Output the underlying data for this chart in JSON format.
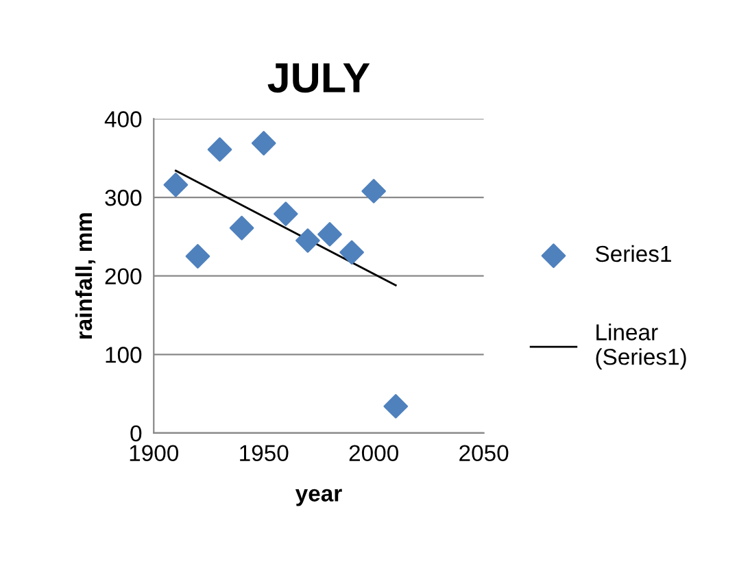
{
  "chart_data": {
    "type": "scatter",
    "title": "JULY",
    "xlabel": "year",
    "ylabel": "rainfall, mm",
    "xlim": [
      1900,
      2050
    ],
    "xticks": [
      1900,
      1950,
      2000,
      2050
    ],
    "ylim": [
      0,
      400
    ],
    "yticks": [
      0,
      100,
      200,
      300,
      400
    ],
    "grid": "y",
    "legend": "right",
    "series": [
      {
        "name": "Series1",
        "marker": "diamond",
        "color": "#4f81bd",
        "x": [
          1910,
          1920,
          1930,
          1940,
          1950,
          1960,
          1970,
          1980,
          1990,
          2000,
          2010
        ],
        "values": [
          316,
          225,
          361,
          261,
          369,
          279,
          245,
          253,
          230,
          308,
          34
        ]
      },
      {
        "name": "Linear\n(Series1)",
        "type": "line",
        "color": "#000000",
        "x": [
          1910,
          2010
        ],
        "values": [
          334,
          188
        ]
      }
    ]
  }
}
